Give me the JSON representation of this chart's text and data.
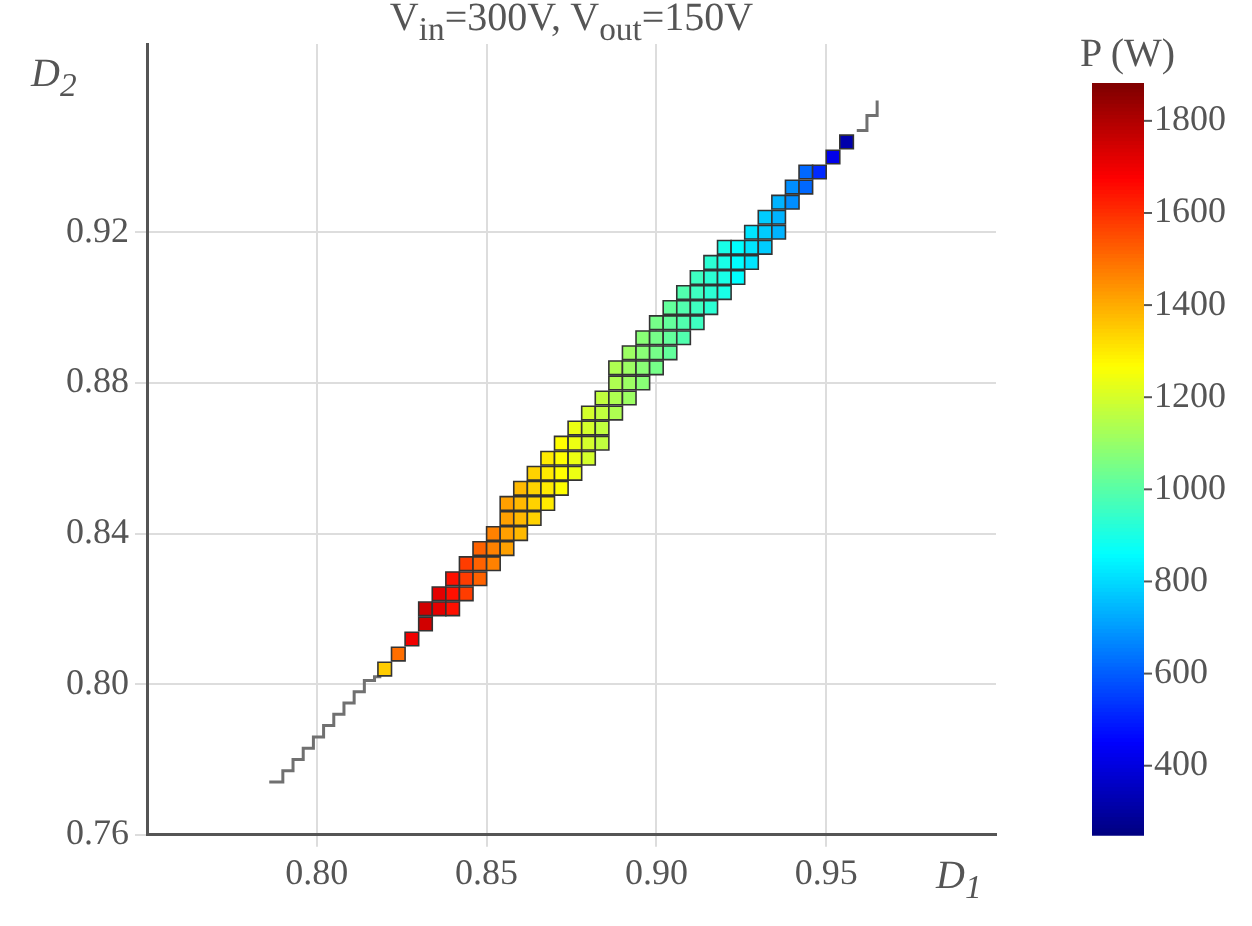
{
  "chart_data": {
    "type": "scatter",
    "title": "V$_{in}$=300V, V$_{out}$=150V",
    "xlabel": "D$_{1}$",
    "ylabel": "D$_{2}$",
    "clabel": "P (W)",
    "xlim": [
      0.75,
      1.0
    ],
    "xticks": [
      {
        "value": 0.8,
        "label": "0.80"
      },
      0.85,
      {
        "value": 0.9,
        "label": "0.90"
      },
      0.95
    ],
    "ylim": [
      0.76,
      0.97
    ],
    "yticks": [
      0.76,
      {
        "value": 0.8,
        "label": "0.80"
      },
      0.84,
      0.88,
      0.92
    ],
    "clim": [
      250,
      1880
    ],
    "cticks": [
      400,
      600,
      800,
      1000,
      1200,
      1400,
      1600,
      1800
    ],
    "grid": true,
    "legend": false,
    "series": [
      {
        "marker": "square",
        "color": "#333333",
        "x": [
          0.82,
          0.824,
          0.828,
          0.832,
          0.832,
          0.836,
          0.836,
          0.84,
          0.84,
          0.84,
          0.844,
          0.844,
          0.844,
          0.848,
          0.848,
          0.848,
          0.852,
          0.852,
          0.852,
          0.856,
          0.856,
          0.856,
          0.856,
          0.86,
          0.86,
          0.86,
          0.86,
          0.864,
          0.864,
          0.864,
          0.864,
          0.868,
          0.868,
          0.868,
          0.868,
          0.872,
          0.872,
          0.872,
          0.872,
          0.876,
          0.876,
          0.876,
          0.876,
          0.88,
          0.88,
          0.88,
          0.88,
          0.884,
          0.884,
          0.884,
          0.884,
          0.888,
          0.888,
          0.888,
          0.888,
          0.892,
          0.892,
          0.892,
          0.892,
          0.896,
          0.896,
          0.896,
          0.896,
          0.9,
          0.9,
          0.9,
          0.9,
          0.904,
          0.904,
          0.904,
          0.904,
          0.908,
          0.908,
          0.908,
          0.908,
          0.912,
          0.912,
          0.912,
          0.912,
          0.916,
          0.916,
          0.916,
          0.916,
          0.92,
          0.92,
          0.92,
          0.92,
          0.924,
          0.924,
          0.924,
          0.928,
          0.928,
          0.928,
          0.932,
          0.932,
          0.932,
          0.936,
          0.936,
          0.936,
          0.94,
          0.94,
          0.944,
          0.944,
          0.948,
          0.952,
          0.956
        ],
        "values": [
          0.804,
          0.808,
          0.812,
          0.816,
          0.82,
          0.82,
          0.824,
          0.82,
          0.824,
          0.828,
          0.824,
          0.828,
          0.832,
          0.828,
          0.832,
          0.836,
          0.832,
          0.836,
          0.84,
          0.836,
          0.84,
          0.844,
          0.848,
          0.84,
          0.844,
          0.848,
          0.852,
          0.844,
          0.848,
          0.852,
          0.856,
          0.848,
          0.852,
          0.856,
          0.86,
          0.852,
          0.856,
          0.86,
          0.864,
          0.856,
          0.86,
          0.864,
          0.868,
          0.86,
          0.864,
          0.868,
          0.872,
          0.864,
          0.868,
          0.872,
          0.876,
          0.872,
          0.876,
          0.88,
          0.884,
          0.876,
          0.88,
          0.884,
          0.888,
          0.88,
          0.884,
          0.888,
          0.892,
          0.884,
          0.888,
          0.892,
          0.896,
          0.888,
          0.892,
          0.896,
          0.9,
          0.892,
          0.896,
          0.9,
          0.904,
          0.896,
          0.9,
          0.904,
          0.908,
          0.9,
          0.904,
          0.908,
          0.912,
          0.904,
          0.908,
          0.912,
          0.916,
          0.908,
          0.912,
          0.916,
          0.912,
          0.916,
          0.92,
          0.916,
          0.92,
          0.924,
          0.92,
          0.924,
          0.928,
          0.928,
          0.932,
          0.932,
          0.936,
          0.936,
          0.94,
          0.944
        ],
        "cvalues": [
          1350,
          1500,
          1700,
          1750,
          1750,
          1720,
          1720,
          1650,
          1650,
          1650,
          1580,
          1580,
          1580,
          1520,
          1520,
          1520,
          1470,
          1470,
          1470,
          1420,
          1420,
          1420,
          1420,
          1380,
          1380,
          1380,
          1380,
          1340,
          1340,
          1340,
          1340,
          1300,
          1300,
          1300,
          1300,
          1270,
          1270,
          1270,
          1270,
          1240,
          1240,
          1240,
          1240,
          1200,
          1200,
          1200,
          1200,
          1170,
          1170,
          1170,
          1170,
          1140,
          1140,
          1140,
          1140,
          1110,
          1110,
          1110,
          1110,
          1080,
          1080,
          1080,
          1080,
          1050,
          1050,
          1050,
          1050,
          1020,
          1020,
          1020,
          1020,
          990,
          990,
          990,
          990,
          960,
          960,
          960,
          960,
          930,
          930,
          930,
          930,
          900,
          900,
          900,
          900,
          860,
          860,
          860,
          820,
          820,
          820,
          780,
          780,
          780,
          740,
          740,
          740,
          680,
          680,
          620,
          620,
          520,
          420,
          320
        ]
      },
      {
        "type": "step",
        "color": "#707070",
        "x": [
          0.786,
          0.79,
          0.793,
          0.796,
          0.799,
          0.802,
          0.805,
          0.808,
          0.811,
          0.814,
          0.817,
          0.819
        ],
        "values": [
          0.774,
          0.777,
          0.78,
          0.783,
          0.786,
          0.789,
          0.792,
          0.795,
          0.798,
          0.801,
          0.802,
          0.802
        ]
      },
      {
        "type": "step",
        "color": "#707070",
        "x": [
          0.959,
          0.962,
          0.965
        ],
        "values": [
          0.947,
          0.951,
          0.955
        ]
      }
    ]
  }
}
